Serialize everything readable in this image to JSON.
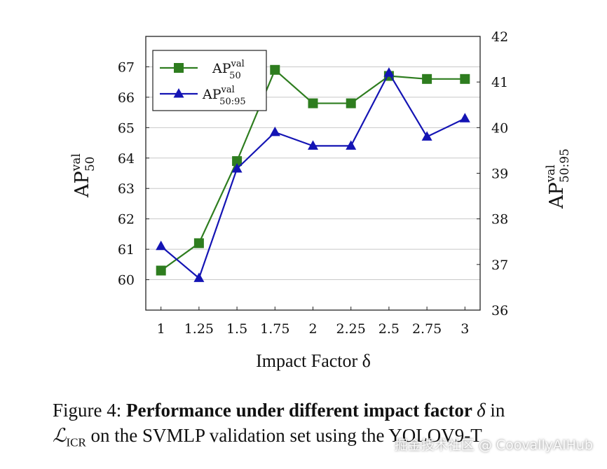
{
  "chart_data": {
    "type": "line",
    "x": [
      1,
      1.25,
      1.5,
      1.75,
      2,
      2.25,
      2.5,
      2.75,
      3
    ],
    "x_tick_labels": [
      "1",
      "1.25",
      "1.5",
      "1.75",
      "2",
      "2.25",
      "2.5",
      "2.75",
      "3"
    ],
    "xlabel": "Impact Factor δ",
    "xlim": [
      0.9,
      3.1
    ],
    "y_left": {
      "label_base": "AP",
      "label_sup": "val",
      "label_sub": "50",
      "ylim": [
        59,
        68
      ],
      "ticks": [
        60,
        61,
        62,
        63,
        64,
        65,
        66,
        67
      ]
    },
    "y_right": {
      "label_base": "AP",
      "label_sup": "val",
      "label_sub": "50:95",
      "ylim": [
        36,
        42
      ],
      "ticks": [
        36,
        37,
        38,
        39,
        40,
        41,
        42
      ]
    },
    "grid": "horizontal",
    "legend_position": "top-left",
    "series": [
      {
        "name": "AP50val",
        "legend_base": "AP",
        "legend_sup": "val",
        "legend_sub": "50",
        "axis": "left",
        "color": "#2e7d1f",
        "marker": "square",
        "values": [
          60.3,
          61.2,
          63.9,
          66.9,
          65.8,
          65.8,
          66.7,
          66.6,
          66.6
        ]
      },
      {
        "name": "AP50:95val",
        "legend_base": "AP",
        "legend_sup": "val",
        "legend_sub": "50:95",
        "axis": "right",
        "color": "#1414b4",
        "marker": "triangle",
        "values": [
          37.4,
          36.7,
          39.1,
          39.9,
          39.6,
          39.6,
          41.2,
          39.8,
          40.2
        ]
      }
    ]
  },
  "caption": {
    "prefix": "Figure 4: ",
    "bold": "Performance under different impact factor ",
    "delta": "δ",
    "after_delta": " in",
    "loss_symbol": "ℒ",
    "loss_sub": "ICR",
    "rest": " on the SVMLP validation set using the YOLOV9-T"
  },
  "watermark": "掘金技术社区 @ CoovallyAIHub"
}
